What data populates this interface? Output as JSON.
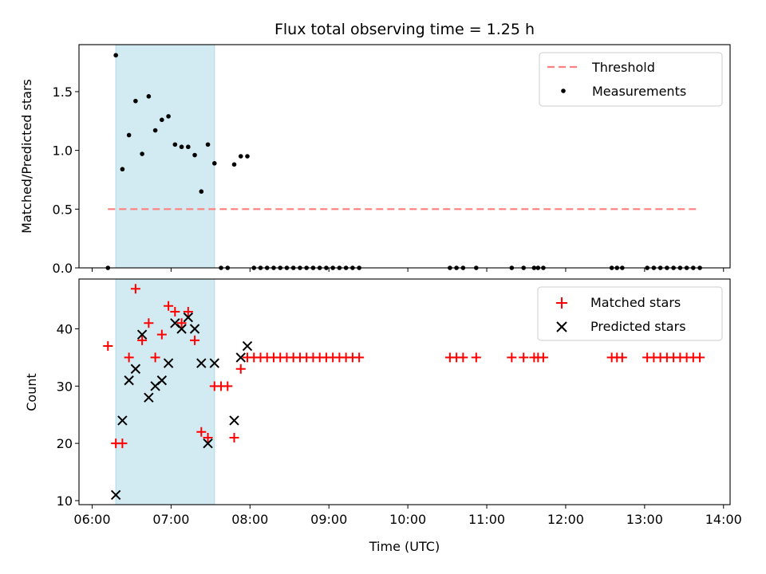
{
  "figure": {
    "title": "Flux total observing time = 1.25 h"
  },
  "chart_data": [
    {
      "type": "scatter",
      "panel": "top",
      "ylabel": "Matched/Predicted stars",
      "xlabel": "",
      "ylim": [
        0,
        1.9
      ],
      "xlim": [
        "05:50",
        "14:05"
      ],
      "yticks": [
        0.0,
        0.5,
        1.0,
        1.5
      ],
      "ytick_labels": [
        "0.0",
        "0.5",
        "1.0",
        "1.5"
      ],
      "grid": false,
      "legend_position": "top-right",
      "shaded_span": {
        "x0": "06:18",
        "x1": "07:33",
        "color": "#add8e6"
      },
      "threshold": {
        "name": "Threshold",
        "y": 0.5,
        "x0": "06:12",
        "x1": "13:42",
        "color": "#ff7f7f"
      },
      "series": [
        {
          "name": "Measurements",
          "color": "#000000",
          "marker": "dot",
          "points": [
            [
              "06:12",
              0.0
            ],
            [
              "06:18",
              1.81
            ],
            [
              "06:23",
              0.84
            ],
            [
              "06:28",
              1.13
            ],
            [
              "06:33",
              1.42
            ],
            [
              "06:38",
              0.97
            ],
            [
              "06:43",
              1.46
            ],
            [
              "06:48",
              1.17
            ],
            [
              "06:53",
              1.26
            ],
            [
              "06:58",
              1.29
            ],
            [
              "07:03",
              1.05
            ],
            [
              "07:08",
              1.03
            ],
            [
              "07:13",
              1.03
            ],
            [
              "07:18",
              0.96
            ],
            [
              "07:23",
              0.65
            ],
            [
              "07:28",
              1.05
            ],
            [
              "07:33",
              0.89
            ],
            [
              "07:38",
              0.0
            ],
            [
              "07:43",
              0.0
            ],
            [
              "07:48",
              0.88
            ],
            [
              "07:53",
              0.95
            ],
            [
              "07:58",
              0.95
            ],
            [
              "08:03",
              0.0
            ],
            [
              "08:08",
              0.0
            ],
            [
              "08:13",
              0.0
            ],
            [
              "08:18",
              0.0
            ],
            [
              "08:23",
              0.0
            ],
            [
              "08:28",
              0.0
            ],
            [
              "08:33",
              0.0
            ],
            [
              "08:38",
              0.0
            ],
            [
              "08:43",
              0.0
            ],
            [
              "08:48",
              0.0
            ],
            [
              "08:53",
              0.0
            ],
            [
              "08:58",
              0.0
            ],
            [
              "09:03",
              0.0
            ],
            [
              "09:08",
              0.0
            ],
            [
              "09:13",
              0.0
            ],
            [
              "09:18",
              0.0
            ],
            [
              "09:23",
              0.0
            ],
            [
              "10:32",
              0.0
            ],
            [
              "10:37",
              0.0
            ],
            [
              "10:42",
              0.0
            ],
            [
              "10:52",
              0.0
            ],
            [
              "11:19",
              0.0
            ],
            [
              "11:28",
              0.0
            ],
            [
              "11:36",
              0.0
            ],
            [
              "11:39",
              0.0
            ],
            [
              "11:43",
              0.0
            ],
            [
              "12:35",
              0.0
            ],
            [
              "12:39",
              0.0
            ],
            [
              "12:43",
              0.0
            ],
            [
              "13:02",
              0.0
            ],
            [
              "13:07",
              0.0
            ],
            [
              "13:12",
              0.0
            ],
            [
              "13:17",
              0.0
            ],
            [
              "13:22",
              0.0
            ],
            [
              "13:27",
              0.0
            ],
            [
              "13:32",
              0.0
            ],
            [
              "13:37",
              0.0
            ],
            [
              "13:42",
              0.0
            ]
          ]
        }
      ]
    },
    {
      "type": "scatter",
      "panel": "bottom",
      "ylabel": "Count",
      "xlabel": "Time (UTC)",
      "ylim": [
        9.3,
        48.7
      ],
      "xlim": [
        "05:50",
        "14:05"
      ],
      "yticks": [
        10,
        20,
        30,
        40
      ],
      "ytick_labels": [
        "10",
        "20",
        "30",
        "40"
      ],
      "xticks": [
        "06:00",
        "07:00",
        "08:00",
        "09:00",
        "10:00",
        "11:00",
        "12:00",
        "13:00",
        "14:00"
      ],
      "xtick_labels": [
        "06:00",
        "07:00",
        "08:00",
        "09:00",
        "10:00",
        "11:00",
        "12:00",
        "13:00",
        "14:00"
      ],
      "grid": false,
      "legend_position": "top-right",
      "shaded_span": {
        "x0": "06:18",
        "x1": "07:33",
        "color": "#add8e6"
      },
      "series": [
        {
          "name": "Matched stars",
          "color": "#ff0000",
          "marker": "plus",
          "points": [
            [
              "06:12",
              37
            ],
            [
              "06:18",
              20
            ],
            [
              "06:23",
              20
            ],
            [
              "06:28",
              35
            ],
            [
              "06:33",
              47
            ],
            [
              "06:38",
              38
            ],
            [
              "06:43",
              41
            ],
            [
              "06:48",
              35
            ],
            [
              "06:53",
              39
            ],
            [
              "06:58",
              44
            ],
            [
              "07:03",
              43
            ],
            [
              "07:08",
              41
            ],
            [
              "07:13",
              43
            ],
            [
              "07:18",
              38
            ],
            [
              "07:23",
              22
            ],
            [
              "07:28",
              21
            ],
            [
              "07:33",
              30
            ],
            [
              "07:38",
              30
            ],
            [
              "07:43",
              30
            ],
            [
              "07:48",
              21
            ],
            [
              "07:53",
              33
            ],
            [
              "07:58",
              35
            ],
            [
              "08:03",
              35
            ],
            [
              "08:08",
              35
            ],
            [
              "08:13",
              35
            ],
            [
              "08:18",
              35
            ],
            [
              "08:23",
              35
            ],
            [
              "08:28",
              35
            ],
            [
              "08:33",
              35
            ],
            [
              "08:38",
              35
            ],
            [
              "08:43",
              35
            ],
            [
              "08:48",
              35
            ],
            [
              "08:53",
              35
            ],
            [
              "08:58",
              35
            ],
            [
              "09:03",
              35
            ],
            [
              "09:08",
              35
            ],
            [
              "09:13",
              35
            ],
            [
              "09:18",
              35
            ],
            [
              "09:23",
              35
            ],
            [
              "10:32",
              35
            ],
            [
              "10:37",
              35
            ],
            [
              "10:42",
              35
            ],
            [
              "10:52",
              35
            ],
            [
              "11:19",
              35
            ],
            [
              "11:28",
              35
            ],
            [
              "11:36",
              35
            ],
            [
              "11:39",
              35
            ],
            [
              "11:43",
              35
            ],
            [
              "12:35",
              35
            ],
            [
              "12:39",
              35
            ],
            [
              "12:43",
              35
            ],
            [
              "13:02",
              35
            ],
            [
              "13:07",
              35
            ],
            [
              "13:12",
              35
            ],
            [
              "13:17",
              35
            ],
            [
              "13:22",
              35
            ],
            [
              "13:27",
              35
            ],
            [
              "13:32",
              35
            ],
            [
              "13:37",
              35
            ],
            [
              "13:42",
              35
            ]
          ]
        },
        {
          "name": "Predicted stars",
          "color": "#000000",
          "marker": "x",
          "points": [
            [
              "06:18",
              11
            ],
            [
              "06:23",
              24
            ],
            [
              "06:28",
              31
            ],
            [
              "06:33",
              33
            ],
            [
              "06:38",
              39
            ],
            [
              "06:43",
              28
            ],
            [
              "06:48",
              30
            ],
            [
              "06:53",
              31
            ],
            [
              "06:58",
              34
            ],
            [
              "07:03",
              41
            ],
            [
              "07:08",
              40
            ],
            [
              "07:13",
              42
            ],
            [
              "07:18",
              40
            ],
            [
              "07:23",
              34
            ],
            [
              "07:28",
              20
            ],
            [
              "07:33",
              34
            ],
            [
              "07:48",
              24
            ],
            [
              "07:53",
              35
            ],
            [
              "07:58",
              37
            ]
          ]
        }
      ]
    }
  ]
}
